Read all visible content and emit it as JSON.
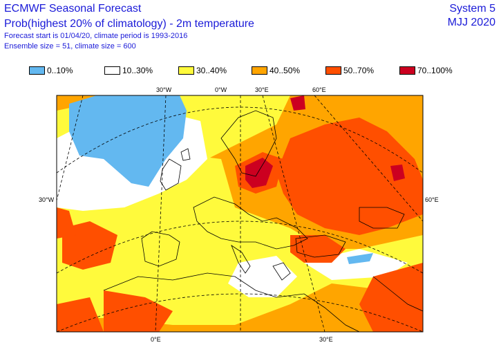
{
  "header": {
    "title": "ECMWF Seasonal Forecast",
    "subtitle": "Prob(highest 20% of climatology) - 2m temperature",
    "forecast_info": "Forecast start is 01/04/20, climate period is 1993-2016",
    "ensemble_info": "Ensemble size = 51, climate size = 600",
    "system": "System 5",
    "period": "MJJ 2020"
  },
  "legend": [
    {
      "label": "0..10%",
      "color": "#63b8f0"
    },
    {
      "label": "10..30%",
      "color": "#ffffff"
    },
    {
      "label": "30..40%",
      "color": "#fffa3c"
    },
    {
      "label": "40..50%",
      "color": "#ffa500"
    },
    {
      "label": "50..70%",
      "color": "#ff4f00"
    },
    {
      "label": "70..100%",
      "color": "#cc0020"
    }
  ],
  "map": {
    "graticule_labels": {
      "top": [
        "30°W",
        "0°W",
        "30°E",
        "60°E"
      ],
      "left": "30°W",
      "right": "60°E",
      "bottom": [
        "0°E",
        "30°E"
      ]
    },
    "colors": {
      "blue": "#63b8f0",
      "white": "#ffffff",
      "yellow": "#fffa3c",
      "orange": "#ffa500",
      "redorange": "#ff4f00",
      "darkred": "#cc0020",
      "coast": "#000000"
    }
  }
}
